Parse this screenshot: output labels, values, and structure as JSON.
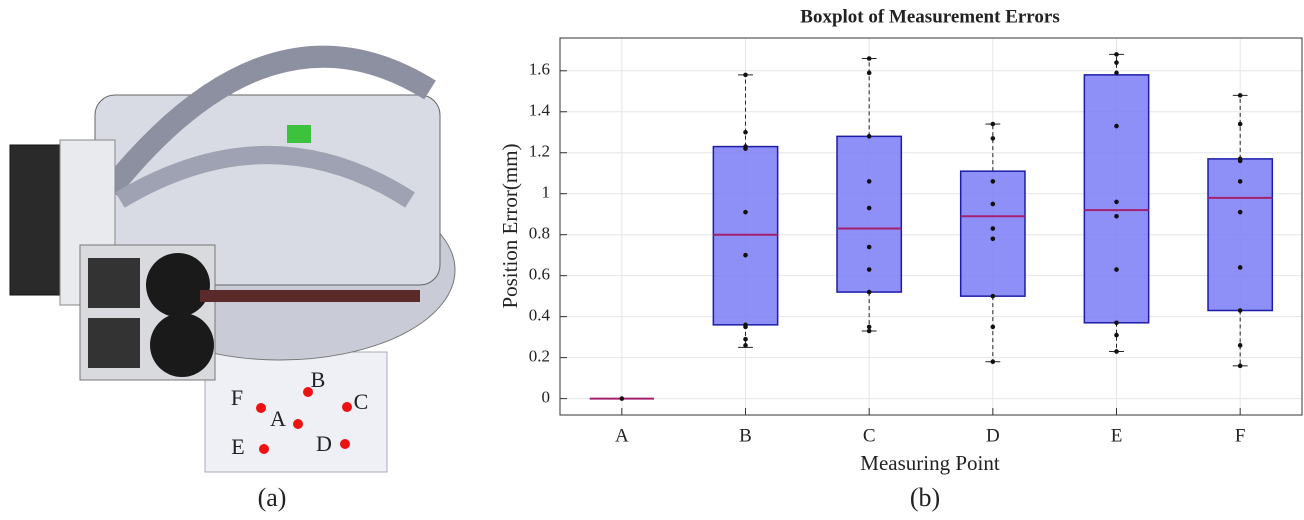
{
  "panel_labels": [
    "(a)",
    "(b)"
  ],
  "diagram": {
    "point_labels": [
      "B",
      "F",
      "C",
      "A",
      "E",
      "D"
    ]
  },
  "chart_data": {
    "type": "box",
    "title": "Boxplot of Measurement Errors",
    "x_label": "Measuring Point",
    "y_label": "Position Error(mm)",
    "categories": [
      "A",
      "B",
      "C",
      "D",
      "E",
      "F"
    ],
    "boxes": [
      {
        "min": 0,
        "q1": 0,
        "median": 0,
        "q3": 0,
        "max": 0,
        "points": [
          0
        ]
      },
      {
        "min": 0.25,
        "q1": 0.36,
        "median": 0.8,
        "q3": 1.23,
        "max": 1.58,
        "points": [
          1.58,
          1.3,
          1.23,
          1.22,
          0.91,
          0.7,
          0.36,
          0.35,
          0.29,
          0.26
        ]
      },
      {
        "min": 0.33,
        "q1": 0.52,
        "median": 0.83,
        "q3": 1.28,
        "max": 1.66,
        "points": [
          1.66,
          1.59,
          1.28,
          1.06,
          0.93,
          0.74,
          0.63,
          0.52,
          0.35,
          0.33
        ]
      },
      {
        "min": 0.18,
        "q1": 0.5,
        "median": 0.89,
        "q3": 1.11,
        "max": 1.34,
        "points": [
          1.34,
          1.27,
          1.06,
          0.95,
          0.83,
          0.78,
          0.5,
          0.35,
          0.18
        ]
      },
      {
        "min": 0.23,
        "q1": 0.37,
        "median": 0.92,
        "q3": 1.58,
        "max": 1.68,
        "points": [
          1.68,
          1.64,
          1.59,
          1.33,
          0.96,
          0.89,
          0.63,
          0.37,
          0.31,
          0.23
        ]
      },
      {
        "min": 0.16,
        "q1": 0.43,
        "median": 0.98,
        "q3": 1.17,
        "max": 1.48,
        "points": [
          1.48,
          1.34,
          1.17,
          1.16,
          1.06,
          0.91,
          0.64,
          0.43,
          0.26,
          0.16
        ]
      }
    ],
    "box_color": "#7b7bf7",
    "box_edge_color": "#1c1ca8",
    "median_color": "#a3206e",
    "point_color": "#111111",
    "ylim": [
      -0.08,
      1.76
    ],
    "yticks": [
      0,
      0.2,
      0.4,
      0.6,
      0.8,
      1,
      1.2,
      1.4,
      1.6
    ],
    "grid": true
  }
}
